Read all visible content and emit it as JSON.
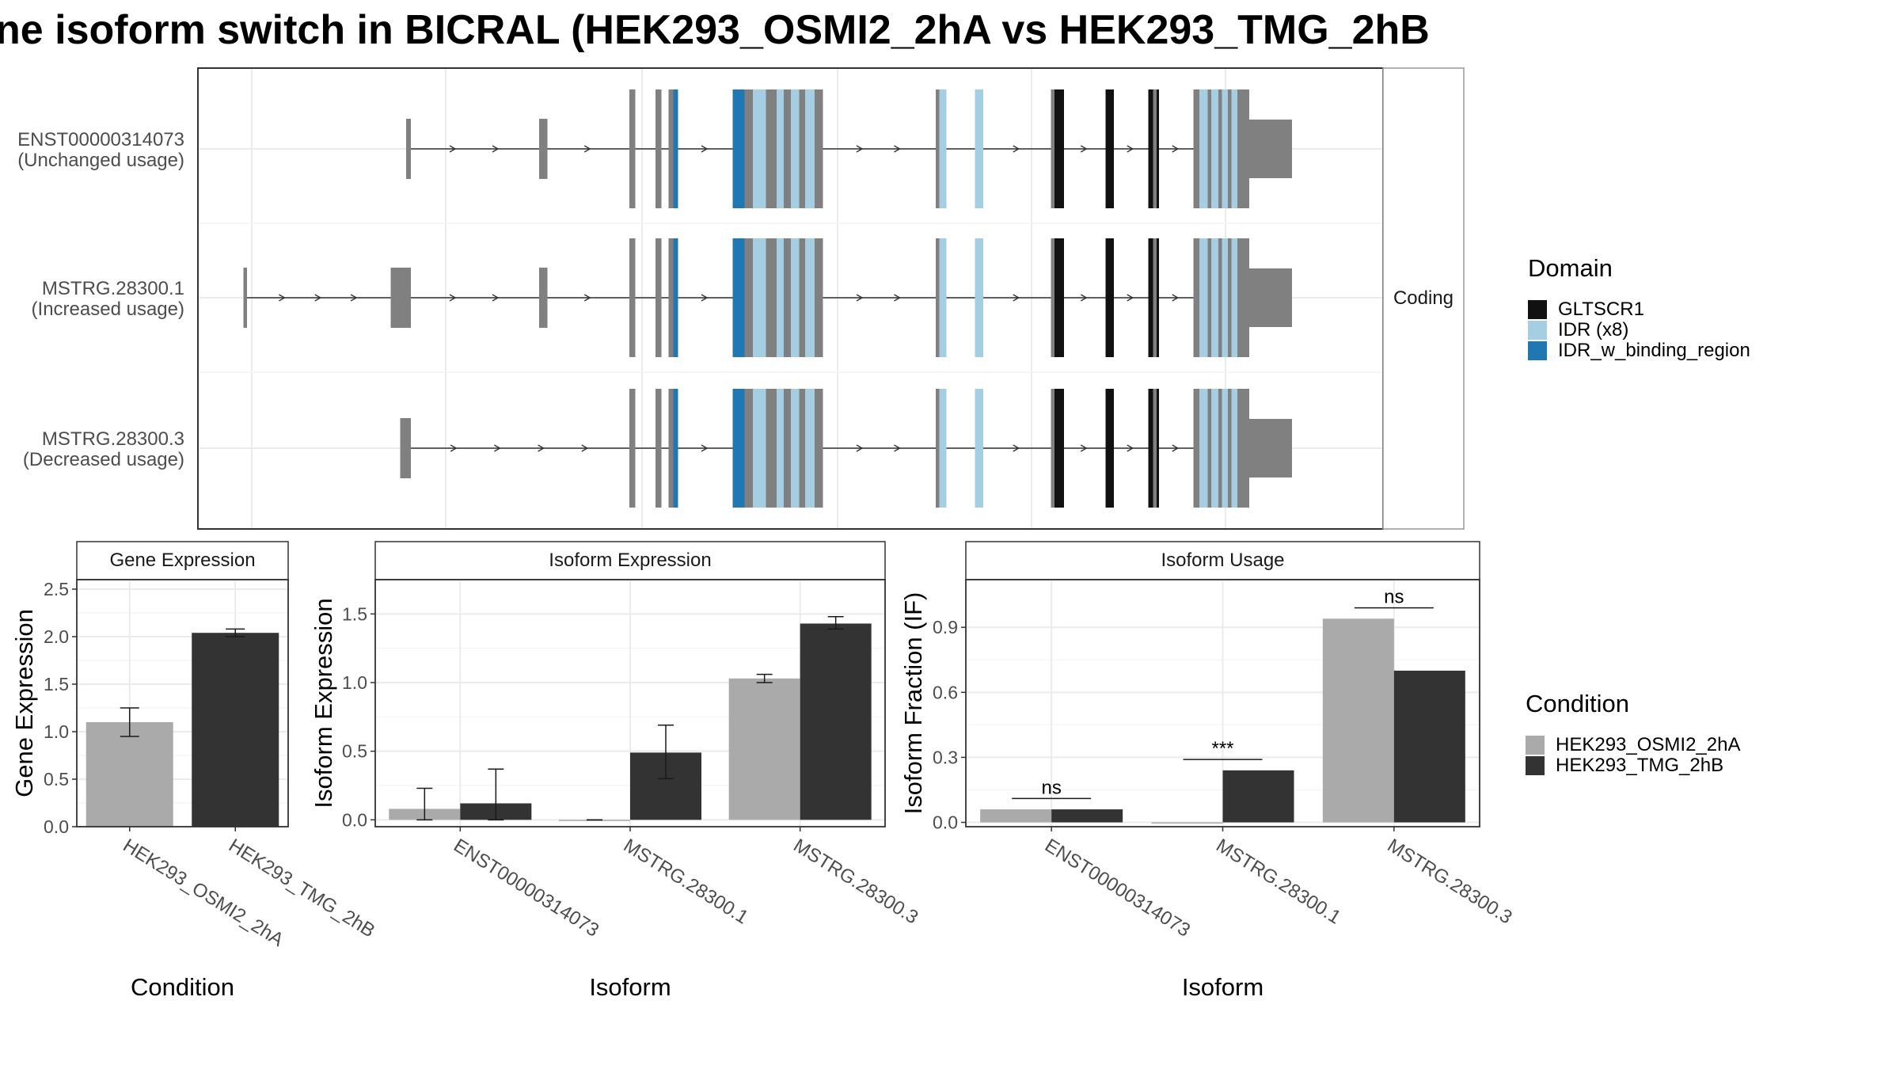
{
  "title": "ne isoform switch in BICRAL (HEK293_OSMI2_2hA vs HEK293_TMG_2hB",
  "colors": {
    "gene_block": "#808080",
    "GLTSCR1": "#111111",
    "IDR": "#a6cee3",
    "IDR_w_binding_region": "#1f78b4",
    "cond_A": "#aaaaaa",
    "cond_B": "#333333",
    "grid": "#ebebeb",
    "panel_border": "#333333",
    "strip_fill": "#ffffff"
  },
  "transcripts": {
    "strip_label": "Coding",
    "rows": [
      {
        "id": "ENST00000314073",
        "usage": "(Unchanged usage)",
        "first_exon": "t1",
        "blocks": [
          {
            "kind": "gene",
            "x1": 342,
            "x2": 346,
            "h": "thin"
          },
          {
            "kind": "gene",
            "x1": 454,
            "x2": 461,
            "h": "thin"
          }
        ]
      },
      {
        "id": "MSTRG.28300.1",
        "usage": "(Increased usage)",
        "first_exon": "t2",
        "blocks": [
          {
            "kind": "gene",
            "x1": 205,
            "x2": 208,
            "h": "thin"
          },
          {
            "kind": "gene",
            "x1": 329,
            "x2": 346,
            "h": "thin"
          },
          {
            "kind": "gene",
            "x1": 454,
            "x2": 461,
            "h": "thin"
          }
        ]
      },
      {
        "id": "MSTRG.28300.3",
        "usage": "(Decreased usage)",
        "first_exon": "t3",
        "blocks": [
          {
            "kind": "gene",
            "x1": 337,
            "x2": 346,
            "h": "thin"
          }
        ]
      }
    ],
    "shared_blocks": [
      {
        "kind": "gene",
        "x1": 530,
        "x2": 535,
        "h": "thick"
      },
      {
        "kind": "gene",
        "x1": 552,
        "x2": 557,
        "h": "thick"
      },
      {
        "kind": "gene",
        "x1": 563,
        "x2": 567,
        "h": "thick"
      },
      {
        "kind": "IDR_w_binding_region",
        "x1": 567,
        "x2": 571,
        "h": "thick"
      },
      {
        "kind": "IDR_w_binding_region",
        "x1": 617,
        "x2": 627,
        "h": "thick"
      },
      {
        "kind": "gene",
        "x1": 627,
        "x2": 634,
        "h": "thick"
      },
      {
        "kind": "IDR",
        "x1": 634,
        "x2": 645,
        "h": "thick"
      },
      {
        "kind": "gene",
        "x1": 645,
        "x2": 654,
        "h": "thick"
      },
      {
        "kind": "IDR",
        "x1": 654,
        "x2": 660,
        "h": "thick"
      },
      {
        "kind": "gene",
        "x1": 660,
        "x2": 666,
        "h": "thick"
      },
      {
        "kind": "IDR",
        "x1": 666,
        "x2": 673,
        "h": "thick"
      },
      {
        "kind": "gene",
        "x1": 673,
        "x2": 678,
        "h": "thick"
      },
      {
        "kind": "IDR",
        "x1": 678,
        "x2": 686,
        "h": "thick"
      },
      {
        "kind": "gene",
        "x1": 686,
        "x2": 693,
        "h": "thick"
      },
      {
        "kind": "gene",
        "x1": 788,
        "x2": 791,
        "h": "thick"
      },
      {
        "kind": "IDR",
        "x1": 791,
        "x2": 797,
        "h": "thick"
      },
      {
        "kind": "IDR",
        "x1": 821,
        "x2": 828,
        "h": "thick"
      },
      {
        "kind": "gene",
        "x1": 885,
        "x2": 888,
        "h": "thick"
      },
      {
        "kind": "GLTSCR1",
        "x1": 888,
        "x2": 896,
        "h": "thick"
      },
      {
        "kind": "GLTSCR1",
        "x1": 931,
        "x2": 938,
        "h": "thick"
      },
      {
        "kind": "GLTSCR1",
        "x1": 967,
        "x2": 971,
        "h": "thick"
      },
      {
        "kind": "gene",
        "x1": 971,
        "x2": 974,
        "h": "thick"
      },
      {
        "kind": "GLTSCR1",
        "x1": 974,
        "x2": 976,
        "h": "thick"
      },
      {
        "kind": "gene",
        "x1": 1005,
        "x2": 1010,
        "h": "thick"
      },
      {
        "kind": "IDR",
        "x1": 1010,
        "x2": 1017,
        "h": "thick"
      },
      {
        "kind": "gene",
        "x1": 1017,
        "x2": 1020,
        "h": "thick"
      },
      {
        "kind": "IDR",
        "x1": 1020,
        "x2": 1026,
        "h": "thick"
      },
      {
        "kind": "gene",
        "x1": 1026,
        "x2": 1029,
        "h": "thick"
      },
      {
        "kind": "IDR",
        "x1": 1029,
        "x2": 1034,
        "h": "thick"
      },
      {
        "kind": "gene",
        "x1": 1034,
        "x2": 1037,
        "h": "thick"
      },
      {
        "kind": "IDR",
        "x1": 1037,
        "x2": 1042,
        "h": "thick"
      },
      {
        "kind": "gene",
        "x1": 1042,
        "x2": 1052,
        "h": "thick"
      },
      {
        "kind": "gene",
        "x1": 1052,
        "x2": 1088,
        "h": "utr"
      }
    ]
  },
  "legend_domain": {
    "title": "Domain",
    "items": [
      {
        "label": "GLTSCR1",
        "color_key": "GLTSCR1"
      },
      {
        "label": "IDR (x8)",
        "color_key": "IDR"
      },
      {
        "label": "IDR_w_binding_region",
        "color_key": "IDR_w_binding_region"
      }
    ]
  },
  "legend_condition": {
    "title": "Condition",
    "items": [
      {
        "label": "HEK293_OSMI2_2hA",
        "color_key": "cond_A"
      },
      {
        "label": "HEK293_TMG_2hB",
        "color_key": "cond_B"
      }
    ]
  },
  "chart_data": [
    {
      "type": "bar",
      "title": "Gene Expression",
      "xlabel": "Condition",
      "ylabel": "Gene Expression",
      "ylim": [
        0,
        2.6
      ],
      "yticks": [
        0.0,
        0.5,
        1.0,
        1.5,
        2.0,
        2.5
      ],
      "categories": [
        "HEK293_OSMI2_2hA",
        "HEK293_TMG_2hB"
      ],
      "values": [
        1.1,
        2.04
      ],
      "error": [
        [
          0.95,
          1.25
        ],
        [
          2.0,
          2.08
        ]
      ],
      "grid": true
    },
    {
      "type": "bar",
      "title": "Isoform Expression",
      "xlabel": "Isoform",
      "ylabel": "Isoform Expression",
      "ylim": [
        -0.05,
        1.75
      ],
      "yticks": [
        0.0,
        0.5,
        1.0,
        1.5
      ],
      "categories": [
        "ENST00000314073",
        "MSTRG.28300.1",
        "MSTRG.28300.3"
      ],
      "series": [
        {
          "name": "HEK293_OSMI2_2hA",
          "values": [
            0.08,
            0.0,
            1.03
          ],
          "error": [
            [
              0.0,
              0.23
            ],
            [
              0.0,
              0.0
            ],
            [
              1.0,
              1.06
            ]
          ]
        },
        {
          "name": "HEK293_TMG_2hB",
          "values": [
            0.12,
            0.49,
            1.43
          ],
          "error": [
            [
              0.0,
              0.37
            ],
            [
              0.3,
              0.69
            ],
            [
              1.39,
              1.48
            ]
          ]
        }
      ],
      "grid": true
    },
    {
      "type": "bar",
      "title": "Isoform Usage",
      "xlabel": "Isoform",
      "ylabel": "Isoform Fraction (IF)",
      "ylim": [
        -0.02,
        1.12
      ],
      "yticks": [
        0.0,
        0.3,
        0.6,
        0.9
      ],
      "categories": [
        "ENST00000314073",
        "MSTRG.28300.1",
        "MSTRG.28300.3"
      ],
      "series": [
        {
          "name": "HEK293_OSMI2_2hA",
          "values": [
            0.06,
            0.0,
            0.94
          ]
        },
        {
          "name": "HEK293_TMG_2hB",
          "values": [
            0.06,
            0.24,
            0.7
          ]
        }
      ],
      "significance": [
        {
          "category": "ENST00000314073",
          "label": "ns",
          "at": 0.11
        },
        {
          "category": "MSTRG.28300.1",
          "label": "***",
          "at": 0.29
        },
        {
          "category": "MSTRG.28300.3",
          "label": "ns",
          "at": 0.99
        }
      ],
      "grid": true
    }
  ]
}
